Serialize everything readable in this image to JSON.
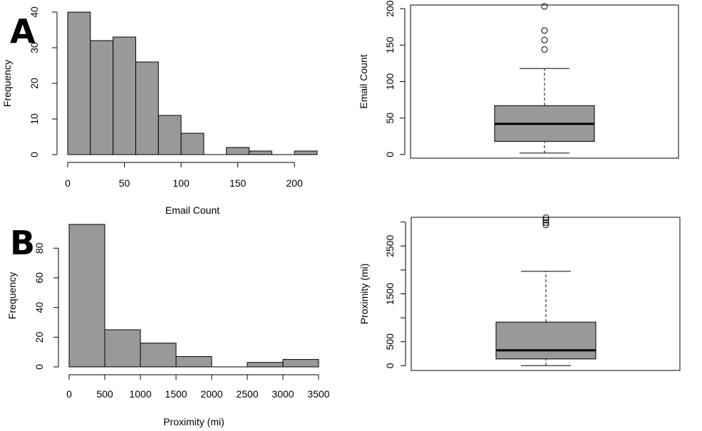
{
  "panels": [
    {
      "letter": "A"
    },
    {
      "letter": "B"
    }
  ],
  "chart_data": [
    {
      "type": "bar",
      "subtype": "histogram",
      "panel": "A",
      "bins": [
        [
          0,
          20
        ],
        [
          20,
          40
        ],
        [
          40,
          60
        ],
        [
          60,
          80
        ],
        [
          80,
          100
        ],
        [
          100,
          120
        ],
        [
          120,
          140
        ],
        [
          140,
          160
        ],
        [
          160,
          180
        ],
        [
          180,
          200
        ],
        [
          200,
          220
        ]
      ],
      "values": [
        40,
        32,
        33,
        26,
        11,
        6,
        0,
        2,
        1,
        0,
        1
      ],
      "xlabel": "Email Count",
      "ylabel": "Frequency",
      "xticks": [
        0,
        50,
        100,
        150,
        200
      ],
      "yticks": [
        0,
        10,
        20,
        30,
        40
      ],
      "xlim": [
        0,
        220
      ],
      "ylim": [
        0,
        40
      ],
      "bar_color": "#999999",
      "grid": false
    },
    {
      "type": "box",
      "panel": "A",
      "ylabel": "Email Count",
      "yticks": [
        0,
        50,
        100,
        150,
        200
      ],
      "ylim": [
        -5,
        205
      ],
      "whisker_low": 2,
      "q1": 18,
      "median": 42,
      "q3": 67,
      "whisker_high": 118,
      "outliers": [
        144,
        157,
        170,
        203
      ],
      "box_color": "#999999",
      "grid": false
    },
    {
      "type": "bar",
      "subtype": "histogram",
      "panel": "B",
      "bins": [
        [
          0,
          500
        ],
        [
          500,
          1000
        ],
        [
          1000,
          1500
        ],
        [
          1500,
          2000
        ],
        [
          2000,
          2500
        ],
        [
          2500,
          3000
        ],
        [
          3000,
          3500
        ]
      ],
      "values": [
        96,
        25,
        16,
        7,
        0,
        3,
        5
      ],
      "xlabel": "Proximity (mi)",
      "ylabel": "Frequency",
      "xticks": [
        0,
        500,
        1000,
        1500,
        2000,
        2500,
        3000,
        3500
      ],
      "yticks": [
        0,
        20,
        40,
        60,
        80
      ],
      "xlim": [
        0,
        3500
      ],
      "ylim": [
        0,
        96
      ],
      "bar_color": "#999999",
      "grid": false
    },
    {
      "type": "box",
      "panel": "B",
      "ylabel": "Proximity (mi)",
      "yticks": [
        0,
        500,
        1000,
        1500,
        2000,
        2500,
        3000
      ],
      "yticklabels": [
        "0",
        "500",
        "",
        "1500",
        "",
        "2500",
        ""
      ],
      "ylim": [
        -100,
        3100
      ],
      "whisker_low": 0,
      "q1": 140,
      "median": 320,
      "q3": 910,
      "whisker_high": 1970,
      "outliers": [
        2940,
        2990,
        3040,
        3090
      ],
      "box_color": "#999999",
      "grid": false
    }
  ]
}
